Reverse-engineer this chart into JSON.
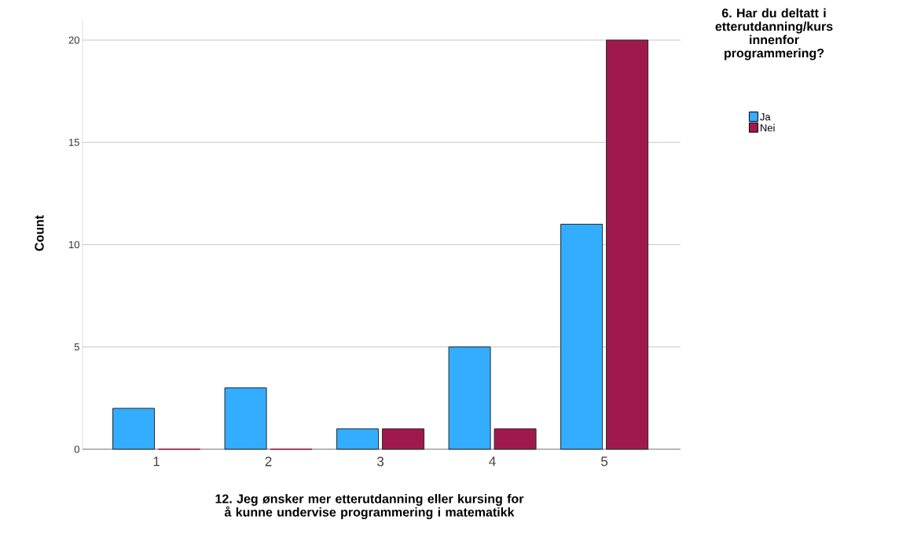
{
  "chart_data": {
    "type": "bar",
    "xlabel": "12. Jeg ønsker mer etterutdanning eller kursing for å kunne undervise programmering i matematikk",
    "ylabel": "Count",
    "legend_title": "6. Har du deltatt i etterutdanning/kurs innenfor programmering?",
    "categories": [
      "1",
      "2",
      "3",
      "4",
      "5"
    ],
    "series": [
      {
        "name": "Ja",
        "color": "#33adff",
        "values": [
          2,
          3,
          1,
          5,
          11
        ]
      },
      {
        "name": "Nei",
        "color": "#a0194e",
        "values": [
          0,
          0,
          1,
          1,
          20
        ]
      }
    ],
    "ylim": [
      0,
      21
    ],
    "yticks": [
      0,
      5,
      10,
      15,
      20
    ],
    "grid": "y",
    "legend": "top right"
  }
}
